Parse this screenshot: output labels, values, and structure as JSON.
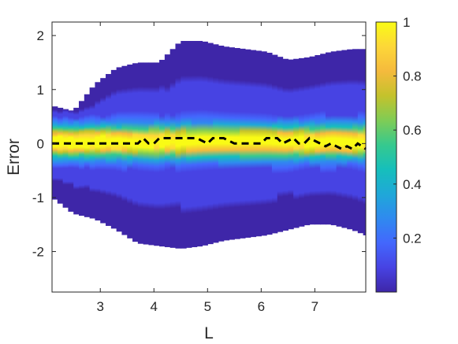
{
  "chart_data": {
    "type": "heatmap",
    "title": "",
    "xlabel": "L",
    "ylabel": "Error",
    "xlim": [
      2.1,
      7.95
    ],
    "ylim": [
      -2.75,
      2.25
    ],
    "xticks": [
      3,
      4,
      5,
      6,
      7
    ],
    "yticks": [
      2,
      1,
      0,
      -1,
      -2
    ],
    "colorbar": {
      "range": [
        0,
        1
      ],
      "ticks": [
        1,
        0.8,
        0.6,
        0.4,
        0.2
      ]
    },
    "grid": false,
    "colormap": [
      "#3e26a8",
      "#4743e3",
      "#4367fd",
      "#2f8aef",
      "#1fa8d8",
      "#16bfbb",
      "#36c98e",
      "#7fcc55",
      "#c4c22c",
      "#f5ba3d",
      "#fdd738",
      "#f9fb15"
    ],
    "density": {
      "x": [
        2.1,
        2.5,
        2.9,
        3.3,
        3.7,
        4.1,
        4.5,
        4.9,
        5.3,
        5.7,
        6.1,
        6.5,
        6.9,
        7.3,
        7.7,
        7.95
      ],
      "upper_support": [
        0.7,
        0.6,
        1.1,
        1.4,
        1.5,
        1.5,
        1.9,
        1.9,
        1.8,
        1.75,
        1.7,
        1.55,
        1.6,
        1.7,
        1.75,
        1.75
      ],
      "lower_support": [
        -1.0,
        -1.3,
        -1.4,
        -1.6,
        -1.85,
        -1.9,
        -1.95,
        -1.9,
        -1.8,
        -1.75,
        -1.7,
        -1.6,
        -1.5,
        -1.5,
        -1.6,
        -1.7
      ],
      "peak_halfwidth": 0.28
    },
    "median_line": {
      "style": "black dashed",
      "x": [
        2.1,
        3.7,
        3.8,
        3.9,
        4.0,
        4.1,
        4.2,
        4.7,
        4.8,
        5.0,
        5.1,
        5.3,
        5.5,
        5.7,
        5.8,
        6.0,
        6.1,
        6.3,
        6.4,
        6.6,
        6.7,
        6.8,
        6.9,
        7.0,
        7.1,
        7.2,
        7.3,
        7.4,
        7.5,
        7.6,
        7.7,
        7.8,
        7.95
      ],
      "y": [
        0.0,
        0.0,
        0.1,
        0.0,
        0.0,
        0.1,
        0.1,
        0.1,
        0.1,
        0.0,
        0.1,
        0.1,
        0.0,
        0.0,
        0.0,
        0.0,
        0.1,
        0.1,
        0.0,
        0.1,
        0.0,
        0.0,
        0.1,
        0.05,
        0.0,
        -0.05,
        0.0,
        -0.05,
        -0.1,
        -0.05,
        -0.1,
        0.0,
        -0.1
      ]
    }
  }
}
